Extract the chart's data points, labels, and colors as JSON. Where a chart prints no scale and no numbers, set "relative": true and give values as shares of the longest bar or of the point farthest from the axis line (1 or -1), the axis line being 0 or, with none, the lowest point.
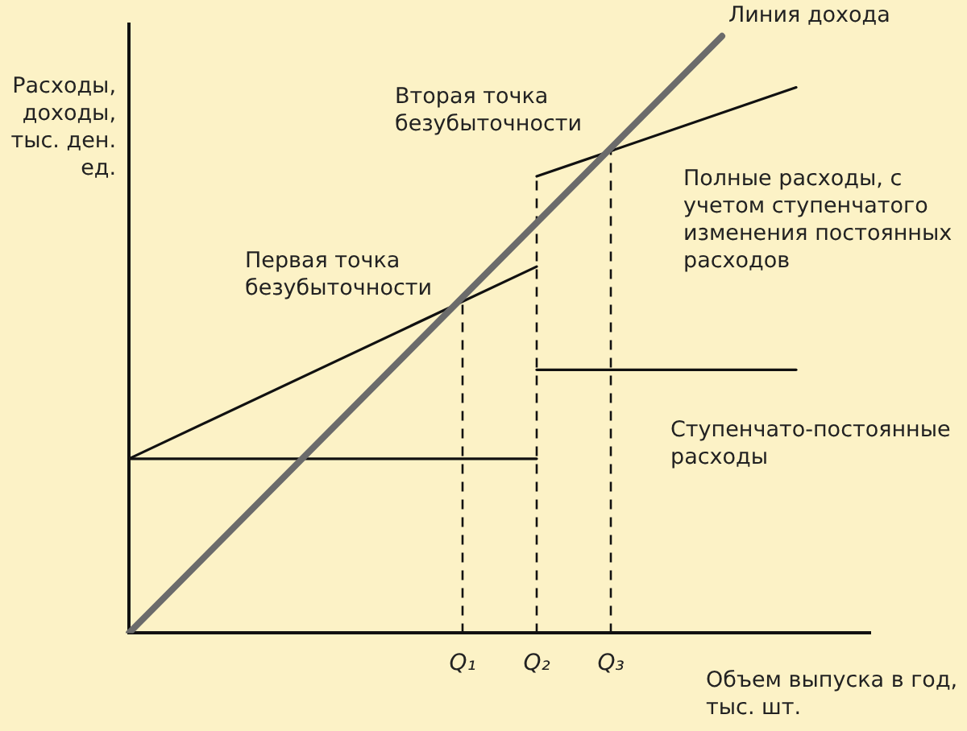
{
  "chart_data": {
    "type": "line",
    "relative": true,
    "xlabel": "Объем выпуска в год, тыс. шт.",
    "ylabel": "Расходы, доходы, тыс. ден. ед.",
    "categories": [
      null,
      null,
      null,
      null,
      null,
      null,
      null,
      null,
      null,
      "Q₁",
      null,
      "Q₂",
      null,
      "Q₃",
      null,
      null,
      null,
      null,
      null,
      null,
      null
    ],
    "tick_labels": "x",
    "grid": false,
    "legend": false,
    "marker": "none",
    "series": [
      {
        "name": "Линия дохода",
        "color": "#6b6b6b",
        "values": [
          0,
          null,
          null,
          null,
          null,
          null,
          null,
          null,
          null,
          null,
          null,
          null,
          null,
          null,
          null,
          null,
          1,
          null,
          null,
          null,
          null
        ]
      },
      {
        "color": "#111111",
        "values": [
          0.292,
          null,
          null,
          null,
          null,
          null,
          null,
          null,
          null,
          null,
          null,
          0.614,
          null,
          null,
          null,
          null,
          null,
          null,
          null,
          null,
          null
        ]
      },
      {
        "name": "Полные расходы, с учетом ступенчатого изменения постоянных расходов",
        "color": "#111111",
        "values": [
          null,
          null,
          null,
          null,
          null,
          null,
          null,
          null,
          null,
          null,
          null,
          0.765,
          null,
          null,
          null,
          null,
          null,
          null,
          0.914,
          null,
          null
        ]
      },
      {
        "color": "#111111",
        "values": [
          0.292,
          null,
          null,
          null,
          null,
          null,
          null,
          null,
          null,
          null,
          null,
          0.292,
          null,
          null,
          null,
          null,
          null,
          null,
          null,
          null,
          null
        ]
      },
      {
        "name": "Ступенчато-постоянные расходы",
        "color": "#111111",
        "values": [
          null,
          null,
          null,
          null,
          null,
          null,
          null,
          null,
          null,
          null,
          null,
          0.441,
          null,
          null,
          null,
          null,
          null,
          null,
          0.441,
          null,
          null
        ]
      }
    ],
    "ref_lines": [
      {
        "axis": "x",
        "value": "Q₁",
        "color": "#111111",
        "line_style": "dashed"
      },
      {
        "axis": "x",
        "value": "Q₂",
        "color": "#111111",
        "line_style": "dashed"
      },
      {
        "axis": "x",
        "value": "Q₃",
        "color": "#111111",
        "line_style": "dashed"
      }
    ],
    "annotations": [
      {
        "text": "Первая точка безубыточности",
        "x": "Q₁",
        "y": 0.56
      },
      {
        "text": "Вторая точка безубыточности",
        "x": "Q₃",
        "y": 0.81
      }
    ]
  }
}
